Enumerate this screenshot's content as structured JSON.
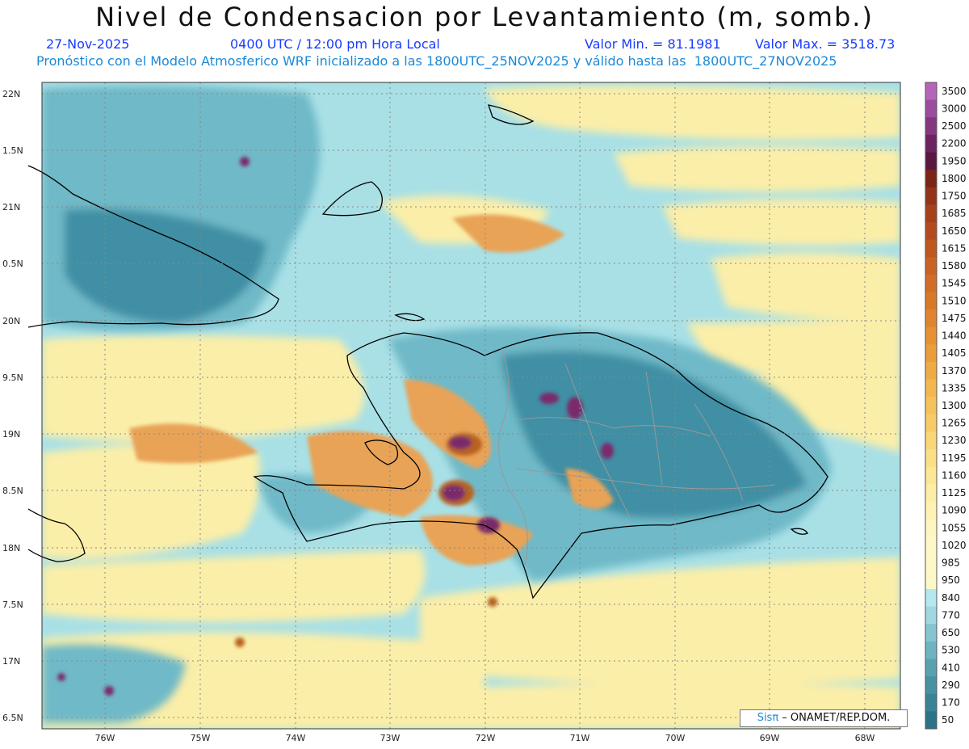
{
  "header": {
    "title": "Nivel de Condensacion por Levantamiento (m, somb.)",
    "date": "27-Nov-2025",
    "time": "0400 UTC / 12:00 pm Hora Local",
    "min_label": "Valor Min. = 81.1981",
    "max_label": "Valor Max. = 3518.73",
    "model_line": "Pronóstico con el Modelo Atmosferico WRF inicializado a las 1800UTC_25NOV2025 y válido hasta las  1800UTC_27NOV2025"
  },
  "map": {
    "lat_labels": [
      "22N",
      "1.5N",
      "21N",
      "0.5N",
      "20N",
      "9.5N",
      "19N",
      "8.5N",
      "18N",
      "7.5N",
      "17N",
      "6.5N"
    ],
    "lon_labels": [
      "76W",
      "75W",
      "74W",
      "73W",
      "72W",
      "71W",
      "70W",
      "69W",
      "68W"
    ],
    "colors": {
      "low": "#2e7f97",
      "mid_blue": "#6fb9c8",
      "light_blue": "#a8e0e6",
      "yellow": "#fbeea8",
      "orange": "#e8a356",
      "brown": "#b8621c",
      "purple": "#7a2a6a"
    }
  },
  "colorbar": {
    "levels": [
      "3500",
      "3000",
      "2500",
      "2200",
      "1950",
      "1800",
      "1750",
      "1685",
      "1650",
      "1615",
      "1580",
      "1545",
      "1510",
      "1475",
      "1440",
      "1405",
      "1370",
      "1335",
      "1300",
      "1265",
      "1230",
      "1195",
      "1160",
      "1125",
      "1090",
      "1055",
      "1020",
      "985",
      "950",
      "840",
      "770",
      "650",
      "530",
      "410",
      "290",
      "170",
      "50"
    ],
    "colors": [
      "#b565b8",
      "#9c4b9e",
      "#86367f",
      "#6d2360",
      "#5a1740",
      "#7a2515",
      "#96321a",
      "#a6411c",
      "#b24c1e",
      "#bd5820",
      "#c76323",
      "#d06e26",
      "#d8792a",
      "#df852f",
      "#e59134",
      "#ea9d3b",
      "#eeaa45",
      "#f2b750",
      "#f5c25c",
      "#f7cc68",
      "#f9d676",
      "#fbdf85",
      "#fce796",
      "#fdeea7",
      "#fef3b5",
      "#fef6c0",
      "#fef8c8",
      "#fef8c8",
      "#fef8c8",
      "#b4e8ee",
      "#9fd8e0",
      "#86c5d0",
      "#6fb3c0",
      "#5aa1b0",
      "#4891a2",
      "#3a8296",
      "#2b738a"
    ]
  },
  "credit": {
    "sis": "Sisπ",
    "rest": " – ONAMET/REP.DOM."
  }
}
